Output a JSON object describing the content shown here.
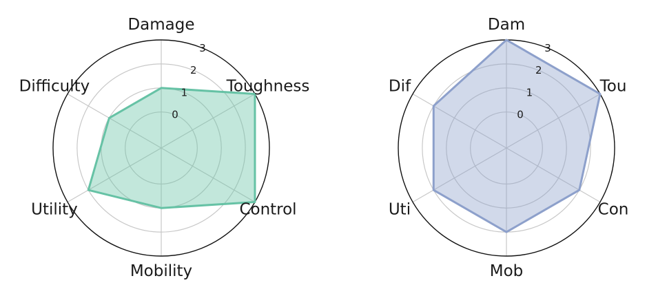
{
  "chart_data": [
    {
      "type": "radar",
      "title": "",
      "axes": [
        "Damage",
        "Toughness",
        "Control",
        "Mobility",
        "Utility",
        "Difficulty"
      ],
      "rticks": [
        "0",
        "1",
        "2",
        "3"
      ],
      "rlim": [
        0,
        3
      ],
      "grid": true,
      "series": [
        {
          "values": [
            1,
            3,
            3,
            1,
            2,
            1
          ],
          "color": "#66c2a5"
        }
      ]
    },
    {
      "type": "radar",
      "title": "",
      "axes": [
        "Dam",
        "Tou",
        "Con",
        "Mob",
        "Uti",
        "Dif"
      ],
      "rticks": [
        "0",
        "1",
        "2",
        "3"
      ],
      "rlim": [
        0,
        3
      ],
      "grid": true,
      "series": [
        {
          "values": [
            3,
            3,
            2,
            2,
            2,
            2
          ],
          "color": "#8da0cb"
        }
      ]
    }
  ]
}
